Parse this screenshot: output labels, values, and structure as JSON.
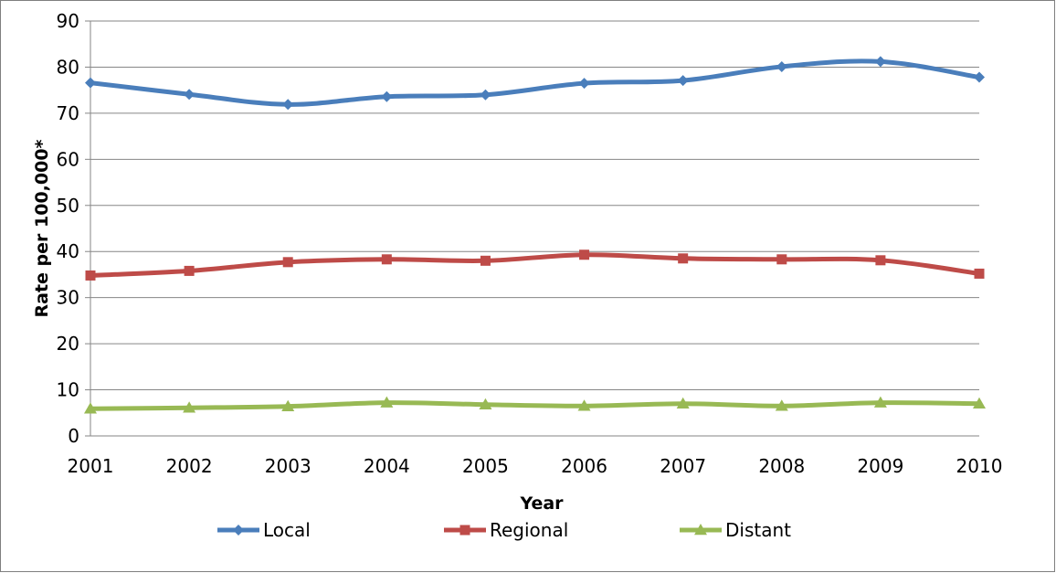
{
  "chart_data": {
    "type": "line",
    "title": "",
    "xlabel": "Year",
    "ylabel": "Rate per 100,000*",
    "ylim": [
      0,
      90
    ],
    "ytick_step": 10,
    "yticks": [
      "0",
      "10",
      "20",
      "30",
      "40",
      "50",
      "60",
      "70",
      "80",
      "90"
    ],
    "categories": [
      "2001",
      "2002",
      "2003",
      "2004",
      "2005",
      "2006",
      "2007",
      "2008",
      "2009",
      "2010"
    ],
    "grid": "horizontal",
    "legend_position": "bottom",
    "series": [
      {
        "name": "Local",
        "marker": "diamond",
        "color": "#4a7ebb",
        "values": [
          76.6,
          74.1,
          71.9,
          73.6,
          74.0,
          76.5,
          77.1,
          80.1,
          81.2,
          77.8
        ]
      },
      {
        "name": "Regional",
        "marker": "square",
        "color": "#be4b48",
        "values": [
          34.8,
          35.8,
          37.7,
          38.3,
          38.0,
          39.3,
          38.5,
          38.3,
          38.1,
          35.2
        ]
      },
      {
        "name": "Distant",
        "marker": "triangle",
        "color": "#98b954",
        "values": [
          5.9,
          6.1,
          6.4,
          7.2,
          6.8,
          6.5,
          7.0,
          6.5,
          7.2,
          7.0
        ]
      }
    ]
  }
}
